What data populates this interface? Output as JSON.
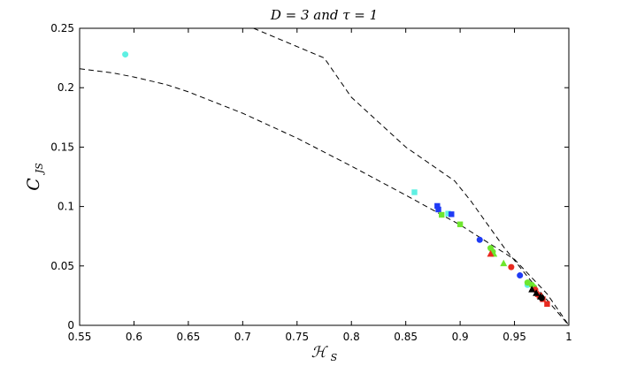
{
  "chart_data": {
    "type": "scatter",
    "title": "D = 3 and τ = 1",
    "xlabel": "ℋ",
    "xlabel_sub": "S",
    "ylabel": "C",
    "ylabel_sub": "JS",
    "xlim": [
      0.55,
      1.0
    ],
    "ylim": [
      0.0,
      0.25
    ],
    "xticks": [
      0.55,
      0.6,
      0.65,
      0.7,
      0.75,
      0.8,
      0.85,
      0.9,
      0.95,
      1
    ],
    "xtick_labels": [
      "0.55",
      "0.6",
      "0.65",
      "0.7",
      "0.75",
      "0.8",
      "0.85",
      "0.9",
      "0.95",
      "1"
    ],
    "yticks": [
      0,
      0.05,
      0.1,
      0.15,
      0.2,
      0.25
    ],
    "ytick_labels": [
      "0",
      "0.05",
      "0.1",
      "0.15",
      "0.2",
      "0.25"
    ],
    "grid": false,
    "boundary_curves": [
      {
        "style": "dashed",
        "points": [
          [
            0.55,
            0.216
          ],
          [
            0.58,
            0.2125
          ],
          [
            0.6,
            0.209
          ],
          [
            0.63,
            0.2025
          ],
          [
            0.65,
            0.1965
          ],
          [
            0.7,
            0.1785
          ],
          [
            0.75,
            0.1575
          ],
          [
            0.8,
            0.134
          ],
          [
            0.85,
            0.1095
          ],
          [
            0.9,
            0.0845
          ],
          [
            0.95,
            0.0555
          ],
          [
            0.98,
            0.0265
          ],
          [
            1.0,
            0.0
          ]
        ]
      },
      {
        "style": "dashed",
        "points": [
          [
            0.71,
            0.25
          ],
          [
            0.775,
            0.225
          ],
          [
            0.8,
            0.192
          ],
          [
            0.85,
            0.15
          ],
          [
            0.895,
            0.1215
          ],
          [
            0.91,
            0.1045
          ],
          [
            0.94,
            0.066
          ],
          [
            0.97,
            0.032
          ],
          [
            1.0,
            0.0
          ]
        ]
      }
    ],
    "series": [
      {
        "color": "#5ef0e3",
        "marker": "circle",
        "points": [
          [
            0.592,
            0.228
          ],
          [
            0.962,
            0.034
          ]
        ]
      },
      {
        "color": "#5ef0e3",
        "marker": "square",
        "points": [
          [
            0.858,
            0.112
          ],
          [
            0.889,
            0.094
          ]
        ]
      },
      {
        "color": "#1f3bf5",
        "marker": "square",
        "points": [
          [
            0.879,
            0.1005
          ],
          [
            0.88,
            0.0975
          ],
          [
            0.892,
            0.0935
          ]
        ]
      },
      {
        "color": "#1f3bf5",
        "marker": "circle",
        "points": [
          [
            0.918,
            0.072
          ],
          [
            0.955,
            0.042
          ]
        ]
      },
      {
        "color": "#6ee62e",
        "marker": "square",
        "points": [
          [
            0.883,
            0.093
          ],
          [
            0.9,
            0.085
          ]
        ]
      },
      {
        "color": "#6ee62e",
        "marker": "circle",
        "points": [
          [
            0.928,
            0.065
          ],
          [
            0.93,
            0.062
          ],
          [
            0.962,
            0.036
          ],
          [
            0.966,
            0.034
          ],
          [
            0.968,
            0.032
          ]
        ]
      },
      {
        "color": "#6ee62e",
        "marker": "triangle",
        "points": [
          [
            0.931,
            0.06
          ],
          [
            0.94,
            0.052
          ]
        ]
      },
      {
        "color": "#e82a20",
        "marker": "circle",
        "points": [
          [
            0.947,
            0.049
          ],
          [
            0.969,
            0.03
          ]
        ]
      },
      {
        "color": "#e82a20",
        "marker": "triangle",
        "points": [
          [
            0.928,
            0.06
          ],
          [
            0.972,
            0.026
          ]
        ]
      },
      {
        "color": "#e82a20",
        "marker": "square",
        "points": [
          [
            0.973,
            0.025
          ],
          [
            0.976,
            0.022
          ],
          [
            0.98,
            0.018
          ]
        ]
      },
      {
        "color": "#000000",
        "marker": "triangle",
        "points": [
          [
            0.966,
            0.03
          ],
          [
            0.97,
            0.027
          ],
          [
            0.974,
            0.024
          ]
        ]
      },
      {
        "color": "#000000",
        "marker": "circle",
        "points": [
          [
            0.975,
            0.023
          ]
        ]
      }
    ]
  }
}
